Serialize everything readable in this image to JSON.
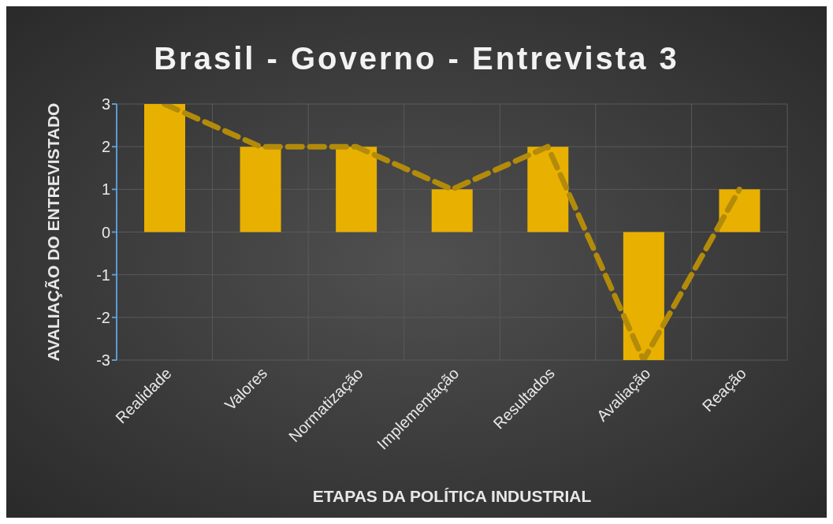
{
  "chart_data": {
    "type": "bar",
    "title": "Brasil - Governo - Entrevista 3",
    "xlabel": "ETAPAS DA POLÍTICA INDUSTRIAL",
    "ylabel": "AVALIAÇÃO DO ENTREVISTADO",
    "categories": [
      "Realidade",
      "Valores",
      "Normatização",
      "Implementação",
      "Resultados",
      "Avaliação",
      "Reação"
    ],
    "series": [
      {
        "color": "#e8b000",
        "values": [
          3,
          2,
          2,
          1,
          2,
          -3,
          1
        ]
      },
      {
        "type": "line",
        "color": "#b38b0a",
        "line_style": "dashed",
        "marker": "none",
        "values": [
          3,
          2,
          2,
          1,
          2,
          -3,
          1
        ]
      }
    ],
    "ylim": [
      -3,
      3
    ],
    "yticks": [
      -3,
      -2,
      -1,
      0,
      1,
      2,
      3
    ],
    "grid": true
  }
}
